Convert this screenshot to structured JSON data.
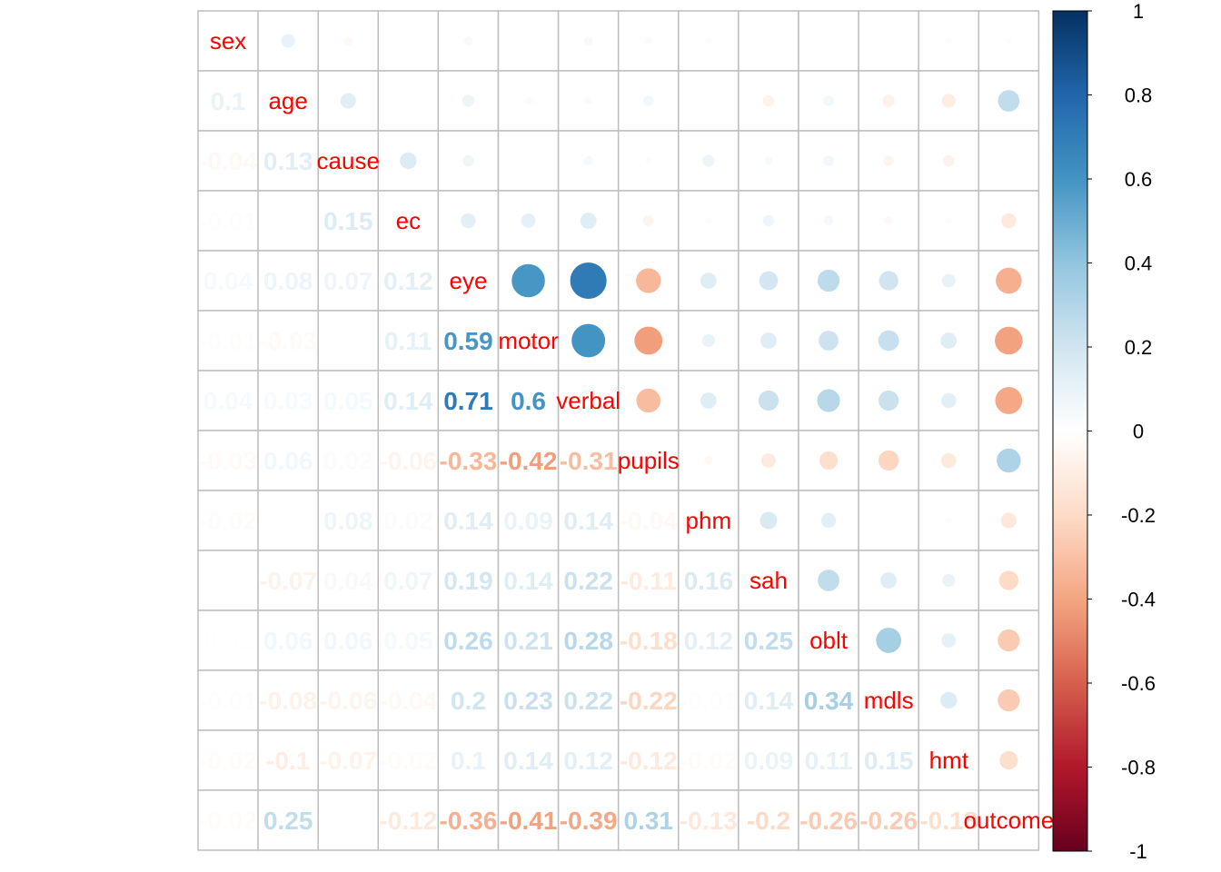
{
  "chart_data": {
    "type": "heatmap",
    "title": "",
    "xlabel": "",
    "ylabel": "",
    "variables": [
      "sex",
      "age",
      "cause",
      "ec",
      "eye",
      "motor",
      "verbal",
      "pupils",
      "phm",
      "sah",
      "oblt",
      "mdls",
      "hmt",
      "outcome"
    ],
    "correlation_matrix": [
      [
        1,
        0.1,
        -0.04,
        -0.01,
        0.04,
        -0.01,
        0.04,
        -0.03,
        -0.02,
        0,
        0.01,
        -0.01,
        -0.02,
        -0.02
      ],
      [
        0.1,
        1,
        0.13,
        0,
        0.08,
        -0.03,
        0.03,
        0.06,
        0,
        -0.07,
        0.06,
        -0.08,
        -0.1,
        0.25
      ],
      [
        -0.04,
        0.13,
        1,
        0.15,
        0.07,
        0,
        0.05,
        0.02,
        0.08,
        0.04,
        0.06,
        -0.06,
        -0.07,
        0
      ],
      [
        -0.01,
        0,
        0.15,
        1,
        0.12,
        0.11,
        0.14,
        -0.06,
        0.02,
        0.07,
        0.05,
        -0.04,
        -0.02,
        -0.12
      ],
      [
        0.04,
        0.08,
        0.07,
        0.12,
        1,
        0.59,
        0.71,
        -0.33,
        0.14,
        0.19,
        0.26,
        0.2,
        0.1,
        -0.36
      ],
      [
        -0.01,
        -0.03,
        0,
        0.11,
        0.59,
        1,
        0.6,
        -0.42,
        0.09,
        0.14,
        0.21,
        0.23,
        0.14,
        -0.41
      ],
      [
        0.04,
        0.03,
        0.05,
        0.14,
        0.71,
        0.6,
        1,
        -0.31,
        0.14,
        0.22,
        0.28,
        0.22,
        0.12,
        -0.39
      ],
      [
        -0.03,
        0.06,
        0.02,
        -0.06,
        -0.33,
        -0.42,
        -0.31,
        1,
        -0.04,
        -0.11,
        -0.18,
        -0.22,
        -0.12,
        0.31
      ],
      [
        -0.02,
        0,
        0.08,
        0.02,
        0.14,
        0.09,
        0.14,
        -0.04,
        1,
        0.16,
        0.12,
        -0.01,
        -0.02,
        -0.13
      ],
      [
        0,
        -0.07,
        0.04,
        0.07,
        0.19,
        0.14,
        0.22,
        -0.11,
        0.16,
        1,
        0.25,
        0.14,
        0.09,
        -0.2
      ],
      [
        0.01,
        0.06,
        0.06,
        0.05,
        0.26,
        0.21,
        0.28,
        -0.18,
        0.12,
        0.25,
        1,
        0.34,
        0.11,
        -0.26
      ],
      [
        -0.01,
        -0.08,
        -0.06,
        -0.04,
        0.2,
        0.23,
        0.22,
        -0.22,
        -0.01,
        0.14,
        0.34,
        1,
        0.15,
        -0.26
      ],
      [
        -0.02,
        -0.1,
        -0.07,
        -0.02,
        0.1,
        0.14,
        0.12,
        -0.12,
        -0.02,
        0.09,
        0.11,
        0.15,
        1,
        -0.18
      ],
      [
        -0.02,
        0.25,
        0,
        -0.12,
        -0.36,
        -0.41,
        -0.39,
        0.31,
        -0.13,
        -0.2,
        -0.26,
        -0.26,
        -0.18,
        1
      ]
    ],
    "upper_method": "circle",
    "lower_method": "number",
    "diagonal": "variable names",
    "colorbar": {
      "range": [
        -1,
        1
      ],
      "ticks": [
        "1",
        "0.8",
        "0.6",
        "0.4",
        "0.2",
        "0",
        "-0.2",
        "-0.4",
        "-0.6",
        "-0.8",
        "-1"
      ],
      "colors": [
        "#67001F",
        "#B2182B",
        "#D6604D",
        "#F4A582",
        "#FDDBC7",
        "#FFFFFF",
        "#D1E5F0",
        "#92C5DE",
        "#4393C3",
        "#2166AC",
        "#053061"
      ]
    },
    "grid": true,
    "legend_placement": "right",
    "label_color": "#ff0000"
  }
}
